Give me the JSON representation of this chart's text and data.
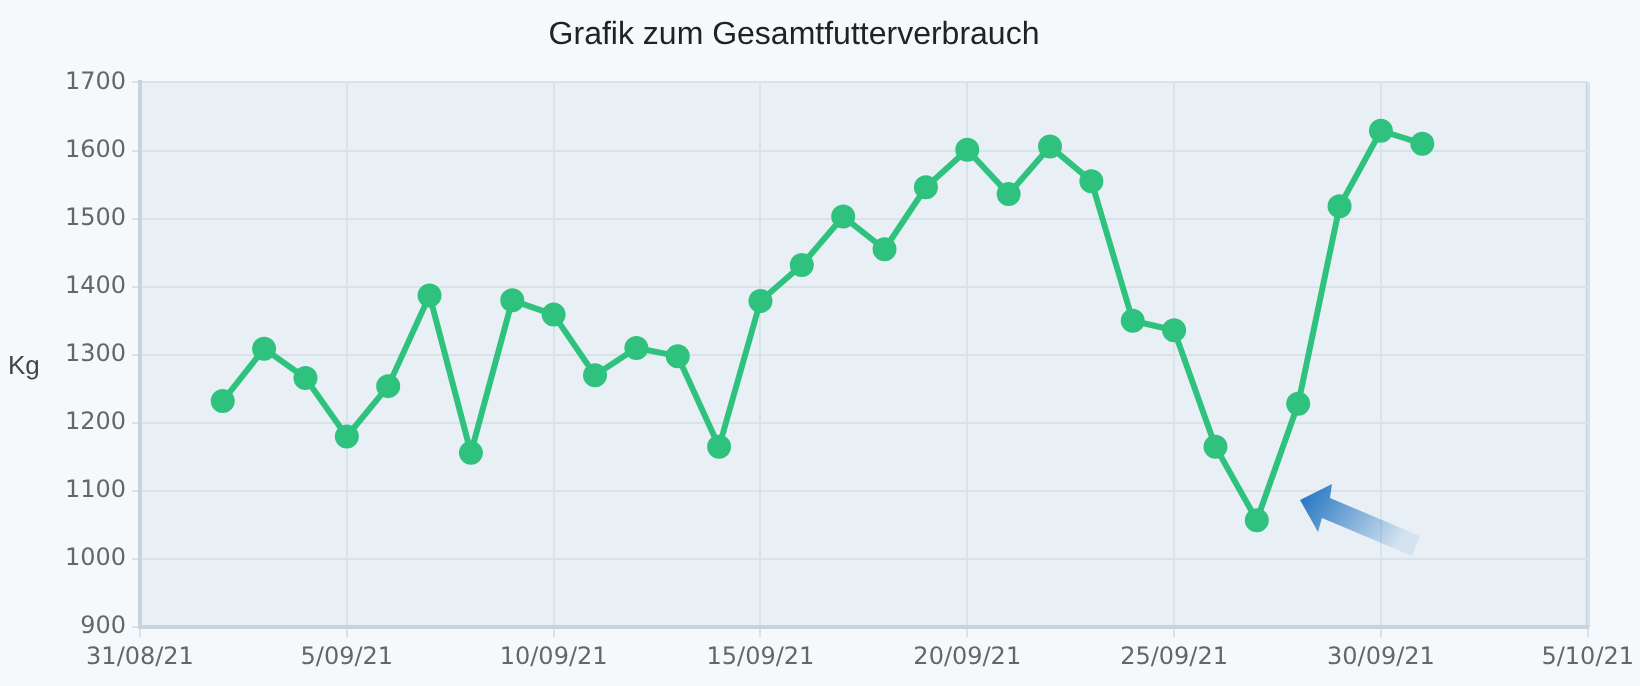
{
  "chart_data": {
    "type": "line",
    "title": "Grafik zum Gesamtfutterverbrauch",
    "ylabel": "Kg",
    "x": [
      "--09-02",
      "--09-03",
      "--09-04",
      "--09-05",
      "--09-06",
      "--09-07",
      "--09-08",
      "--09-09",
      "--09-10",
      "--09-11",
      "--09-12",
      "--09-13",
      "--09-14",
      "--09-15",
      "--09-16",
      "--09-17",
      "--09-18",
      "--09-19",
      "--09-20",
      "--09-21",
      "--09-22",
      "--09-23",
      "--09-24",
      "--09-25",
      "--09-26",
      "--09-27",
      "--09-28",
      "--09-29",
      "--09-30",
      "--10-01"
    ],
    "series": [
      {
        "color": "#2fc27f",
        "values": [
          1232,
          1309,
          1266,
          1180,
          1254,
          1387,
          1156,
          1380,
          1359,
          1270,
          1310,
          1298,
          1165,
          1379,
          1432,
          1503,
          1455,
          1546,
          1601,
          1536,
          1606,
          1555,
          1350,
          1336,
          1165,
          1057,
          1228,
          1518,
          1629,
          1610
        ]
      }
    ],
    "xlim": [
      "--08-31",
      "--10-05"
    ],
    "xticks": [
      {
        "value": "--08-31",
        "label": "31/08/21"
      },
      {
        "value": "--09-05",
        "label": "5/09/21"
      },
      {
        "value": "--09-10",
        "label": "10/09/21"
      },
      {
        "value": "--09-15",
        "label": "15/09/21"
      },
      {
        "value": "--09-20",
        "label": "20/09/21"
      },
      {
        "value": "--09-25",
        "label": "25/09/21"
      },
      {
        "value": "--09-30",
        "label": "30/09/21"
      },
      {
        "value": "--10-05",
        "label": "5/10/21"
      }
    ],
    "ylim": [
      900,
      1700
    ],
    "yticks": [
      900,
      1000,
      1100,
      1200,
      1300,
      1400,
      1500,
      1600,
      1700
    ],
    "grid": true,
    "legend": false,
    "marker": "circle",
    "line_style": "solid"
  }
}
